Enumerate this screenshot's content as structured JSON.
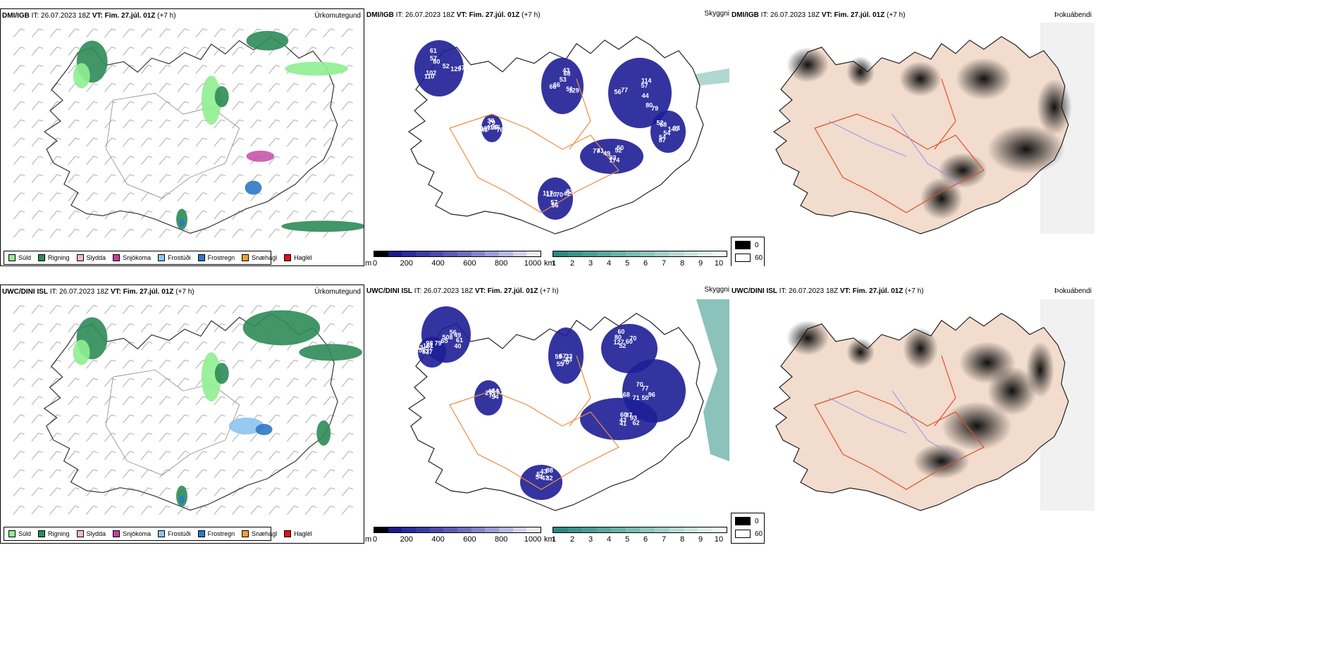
{
  "panels_top": {
    "precip": {
      "source": "DMI/IGB",
      "it_label": "IT:",
      "it": "26.07.2023 18Z",
      "vt_label": "VT:",
      "vt": "Fim. 27.júl. 01Z",
      "lead": "(+7 h)",
      "variable": "Úrkomutegund"
    },
    "cloud": {
      "source": "DMI/IGB",
      "it_label": "IT:",
      "it": "26.07.2023 18Z",
      "vt_label": "VT:",
      "vt": "Fim. 27.júl. 01Z",
      "lead": "(+7 h)",
      "variable": "Skyggni"
    },
    "fog": {
      "source": "DMI/IGB",
      "it_label": "IT:",
      "it": "26.07.2023 18Z",
      "vt_label": "VT:",
      "vt": "Fim. 27.júl. 01Z",
      "lead": "(+7 h)",
      "variable": "Þokuábendi"
    }
  },
  "panels_bottom": {
    "precip": {
      "source": "UWC/DINI ISL",
      "it_label": "IT:",
      "it": "26.07.2023 18Z",
      "vt_label": "VT:",
      "vt": "Fim. 27.júl. 01Z",
      "lead": "(+7 h)",
      "variable": "Úrkomutegund"
    },
    "cloud": {
      "source": "UWC/DINI ISL",
      "it_label": "IT:",
      "it": "26.07.2023 18Z",
      "vt_label": "VT:",
      "vt": "Fim. 27.júl. 01Z",
      "lead": "(+7 h)",
      "variable": "Skyggni"
    },
    "fog": {
      "source": "UWC/DINI ISL",
      "it_label": "IT:",
      "it": "26.07.2023 18Z",
      "vt_label": "VT:",
      "vt": "Fim. 27.júl. 01Z",
      "lead": "(+7 h)",
      "variable": "Þokuábendi"
    }
  },
  "precip_legend": [
    {
      "label": "Súld",
      "color": "#90ee90"
    },
    {
      "label": "Rigning",
      "color": "#2e8b57"
    },
    {
      "label": "Slydda",
      "color": "#f4b6d2"
    },
    {
      "label": "Snjókoma",
      "color": "#c040a0"
    },
    {
      "label": "Frostúði",
      "color": "#8cc3f0"
    },
    {
      "label": "Frostregn",
      "color": "#2f78c4"
    },
    {
      "label": "Snæhagl",
      "color": "#f0a030"
    },
    {
      "label": "Haglél",
      "color": "#e01010"
    }
  ],
  "cloud_base_scale": {
    "unit": "m",
    "ticks": [
      "0",
      "200",
      "400",
      "600",
      "800",
      "1000"
    ],
    "colors": [
      "#000000",
      "#1a1a8a",
      "#2b2b9e",
      "#3a3aa8",
      "#4b4bb0",
      "#5c5cb8",
      "#6e6ec2",
      "#8585cc",
      "#9d9dd8",
      "#b8b8e4",
      "#d2d2ee",
      "#ececf8"
    ]
  },
  "visibility_scale": {
    "unit": "km",
    "ticks": [
      "1",
      "2",
      "3",
      "4",
      "5",
      "6",
      "7",
      "8",
      "9",
      "10"
    ],
    "colors": [
      "#2a8a80",
      "#3a948a",
      "#4a9e94",
      "#5aa89e",
      "#6ab2a8",
      "#7cbcb3",
      "#8ec6be",
      "#a2d0c9",
      "#b6dad4",
      "#cae4df",
      "#def0ec",
      "#f2faf8"
    ]
  },
  "fog_legend": [
    {
      "label": "0",
      "color": "#000000"
    },
    {
      "label": "60",
      "color": "#ffffff"
    }
  ],
  "cloud_labels_top": [
    "52",
    "41",
    "53",
    "44",
    "49",
    "70",
    "54",
    "57",
    "66",
    "66",
    "114",
    "174",
    "117",
    "93",
    "110",
    "30",
    "129",
    "56",
    "50",
    "56",
    "52",
    "47",
    "46",
    "43",
    "79",
    "77",
    "82",
    "87",
    "80",
    "96",
    "66",
    "57",
    "92",
    "120",
    "140",
    "102",
    "79",
    "51",
    "77",
    "52",
    "57",
    "68",
    "129",
    "167",
    "68",
    "80",
    "41",
    "42",
    "54",
    "61",
    "76"
  ],
  "cloud_labels_bottom": [
    "56",
    "37",
    "27",
    "33",
    "52",
    "60",
    "96",
    "54",
    "49",
    "52",
    "40",
    "83",
    "127",
    "87",
    "50",
    "52",
    "61",
    "52",
    "64",
    "70",
    "80",
    "93",
    "71",
    "43",
    "40",
    "43",
    "51",
    "55",
    "60",
    "62",
    "68",
    "88",
    "508",
    "57",
    "74",
    "57",
    "60",
    "43",
    "77",
    "47",
    "65",
    "161",
    "54",
    "59",
    "70",
    "41",
    "70",
    "32",
    "79",
    "98"
  ]
}
